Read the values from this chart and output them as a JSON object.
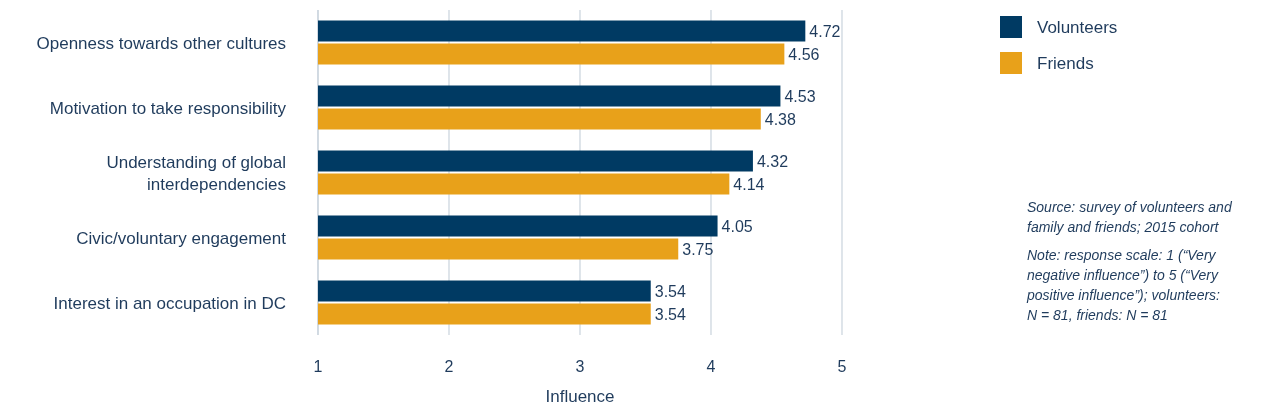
{
  "chart_data": {
    "type": "bar",
    "orientation": "horizontal",
    "categories": [
      "Openness towards other cultures",
      "Motivation to take responsibility",
      "Understanding of global interdependencies",
      "Civic/voluntary engagement",
      "Interest in an occupation in DC"
    ],
    "series": [
      {
        "name": "Volunteers",
        "color": "#003a63",
        "values": [
          4.72,
          4.53,
          4.32,
          4.05,
          3.54
        ]
      },
      {
        "name": "Friends",
        "color": "#e8a11a",
        "values": [
          4.56,
          4.38,
          4.14,
          3.75,
          3.54
        ]
      }
    ],
    "xlim": [
      1,
      5
    ],
    "xticks": [
      1,
      2,
      3,
      4,
      5
    ],
    "xlabel": "Influence",
    "grid": "x",
    "legend": "top right",
    "data_labels": true,
    "annotations": [
      "Source: survey of volunteers and family and friends; 2015 cohort",
      "Note: response scale: 1 (“Very negative influence”) to 5 (“Very positive influence”); volunteers: N = 81, friends: N = 81"
    ]
  }
}
